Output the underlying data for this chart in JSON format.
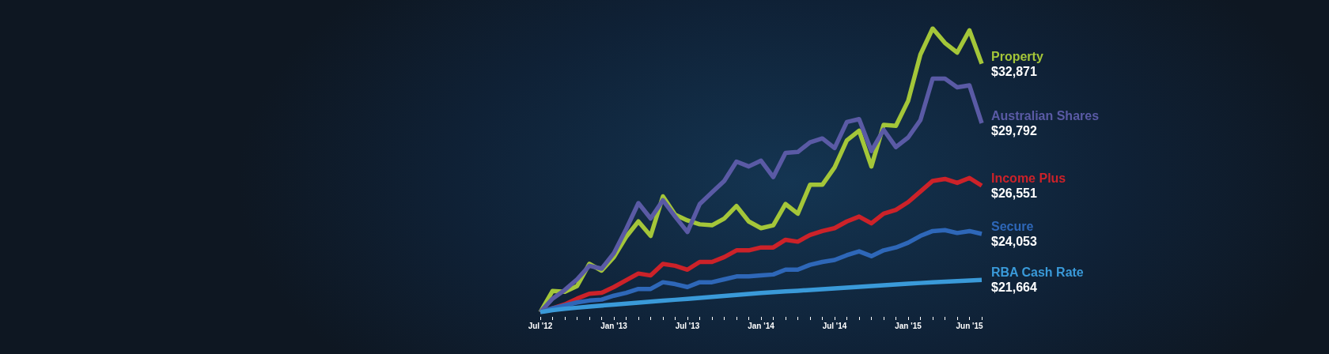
{
  "chart_data": {
    "type": "line",
    "categories": [
      "Jul '12",
      null,
      null,
      null,
      null,
      null,
      "Jan '13",
      null,
      null,
      null,
      null,
      null,
      "Jul '13",
      null,
      null,
      null,
      null,
      null,
      "Jan '14",
      null,
      null,
      null,
      null,
      null,
      "Jul '14",
      null,
      null,
      null,
      null,
      null,
      "Jan '15",
      null,
      null,
      null,
      null,
      "Jun '15",
      null
    ],
    "tick_labels": "x",
    "marker": "none",
    "grid": false,
    "series": [
      {
        "name": "Property",
        "color": "#a4c639",
        "values": [
          20000,
          21100,
          21050,
          21350,
          22500,
          22150,
          22850,
          23900,
          24700,
          23950,
          26000,
          25050,
          24750,
          24550,
          24500,
          24850,
          25500,
          24700,
          24350,
          24500,
          25600,
          25100,
          26600,
          26600,
          27500,
          28900,
          29400,
          27550,
          29700,
          29650,
          30950,
          33350,
          34700,
          33950,
          33450,
          34600,
          32871
        ],
        "value_labels": [
          null,
          null,
          null,
          null,
          null,
          null,
          null,
          null,
          null,
          null,
          null,
          null,
          null,
          null,
          null,
          null,
          null,
          null,
          null,
          null,
          null,
          null,
          null,
          null,
          null,
          null,
          null,
          null,
          null,
          null,
          null,
          null,
          null,
          null,
          null,
          null,
          "$32,871"
        ]
      },
      {
        "name": "Australian Shares",
        "color": "#5a5aa5",
        "values": [
          20000,
          20700,
          21150,
          21700,
          22400,
          22250,
          23050,
          24300,
          25650,
          24850,
          25800,
          24950,
          24150,
          25600,
          26200,
          26800,
          27800,
          27550,
          27850,
          27000,
          28250,
          28300,
          28800,
          29000,
          28500,
          29850,
          30000,
          28350,
          29450,
          28550,
          29050,
          29950,
          32100,
          32100,
          31650,
          31750,
          29792
        ],
        "value_labels": [
          null,
          null,
          null,
          null,
          null,
          null,
          null,
          null,
          null,
          null,
          null,
          null,
          null,
          null,
          null,
          null,
          null,
          null,
          null,
          null,
          null,
          null,
          null,
          null,
          null,
          null,
          null,
          null,
          null,
          null,
          null,
          null,
          null,
          null,
          null,
          null,
          "$29,792"
        ]
      },
      {
        "name": "Income Plus",
        "color": "#cc2229",
        "values": [
          20000,
          20200,
          20400,
          20700,
          20950,
          21000,
          21300,
          21650,
          22000,
          21900,
          22500,
          22400,
          22200,
          22600,
          22600,
          22850,
          23200,
          23200,
          23350,
          23350,
          23750,
          23650,
          24000,
          24200,
          24350,
          24700,
          24950,
          24600,
          25100,
          25300,
          25700,
          26250,
          26800,
          26900,
          26700,
          26950,
          26551
        ],
        "value_labels": [
          null,
          null,
          null,
          null,
          null,
          null,
          null,
          null,
          null,
          null,
          null,
          null,
          null,
          null,
          null,
          null,
          null,
          null,
          null,
          null,
          null,
          null,
          null,
          null,
          null,
          null,
          null,
          null,
          null,
          null,
          null,
          null,
          null,
          null,
          null,
          null,
          "$26,551"
        ]
      },
      {
        "name": "Secure",
        "color": "#2e67b8",
        "values": [
          20000,
          20200,
          20350,
          20500,
          20600,
          20650,
          20850,
          21000,
          21200,
          21200,
          21550,
          21450,
          21300,
          21550,
          21550,
          21700,
          21850,
          21850,
          21900,
          21950,
          22200,
          22200,
          22450,
          22600,
          22700,
          22950,
          23150,
          22900,
          23200,
          23350,
          23600,
          23950,
          24200,
          24250,
          24100,
          24200,
          24053
        ],
        "value_labels": [
          null,
          null,
          null,
          null,
          null,
          null,
          null,
          null,
          null,
          null,
          null,
          null,
          null,
          null,
          null,
          null,
          null,
          null,
          null,
          null,
          null,
          null,
          null,
          null,
          null,
          null,
          null,
          null,
          null,
          null,
          null,
          null,
          null,
          null,
          null,
          null,
          "$24,053"
        ]
      },
      {
        "name": "RBA Cash Rate",
        "color": "#3a9ad9",
        "values": [
          20000,
          20100,
          20170,
          20230,
          20290,
          20340,
          20390,
          20440,
          20490,
          20540,
          20590,
          20640,
          20690,
          20740,
          20790,
          20840,
          20890,
          20940,
          20990,
          21030,
          21070,
          21110,
          21150,
          21190,
          21230,
          21270,
          21310,
          21350,
          21390,
          21430,
          21470,
          21510,
          21550,
          21580,
          21610,
          21640,
          21664
        ],
        "value_labels": [
          null,
          null,
          null,
          null,
          null,
          null,
          null,
          null,
          null,
          null,
          null,
          null,
          null,
          null,
          null,
          null,
          null,
          null,
          null,
          null,
          null,
          null,
          null,
          null,
          null,
          null,
          null,
          null,
          null,
          null,
          null,
          null,
          null,
          null,
          null,
          null,
          "$21,664"
        ]
      }
    ]
  }
}
